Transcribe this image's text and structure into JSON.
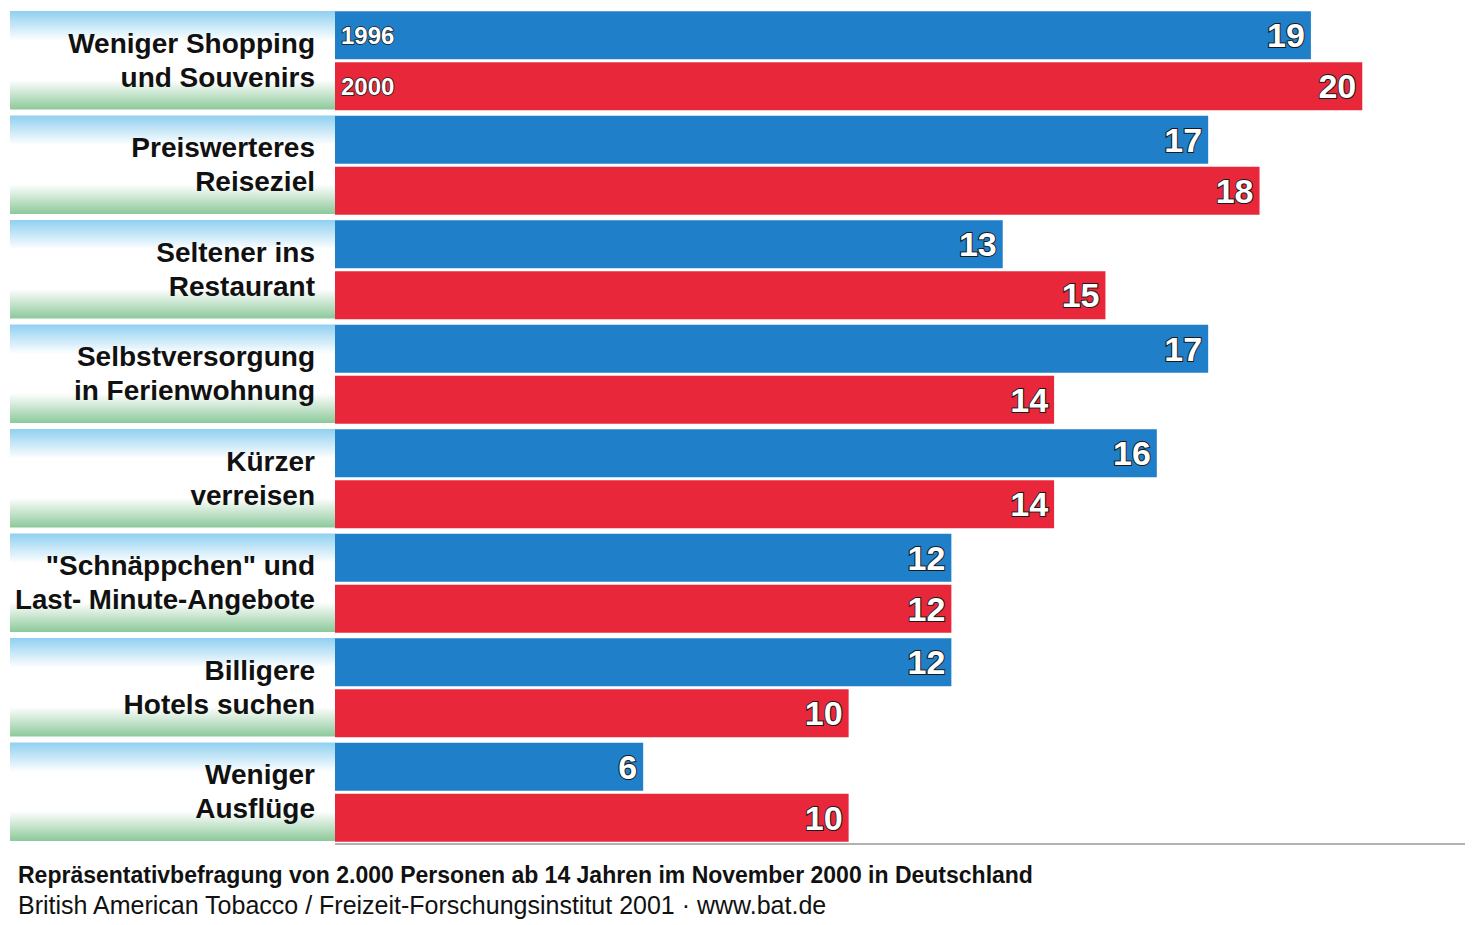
{
  "chart_data": {
    "type": "bar",
    "orientation": "horizontal",
    "categories": [
      "Weniger Shopping und Souvenirs",
      "Preiswerteres Reiseziel",
      "Seltener ins Restaurant",
      "Selbstversorgung in Ferienwohnung",
      "Kürzer verreisen",
      "\"Schnäppchen\" und Last- Minute-Angebote",
      "Billigere Hotels suchen",
      "Weniger Ausflüge"
    ],
    "series": [
      {
        "name": "1996",
        "color": "#1f7fc8",
        "values": [
          19,
          17,
          13,
          17,
          16,
          12,
          12,
          6
        ]
      },
      {
        "name": "2000",
        "color": "#e8283a",
        "values": [
          20,
          18,
          15,
          14,
          14,
          12,
          10,
          10
        ]
      }
    ],
    "xlim": [
      0,
      22
    ],
    "tick_labels": "y",
    "data_labels": true,
    "grid": false,
    "caption": "Repräsentativbefragung von 2.000 Personen ab 14 Jahren im November 2000 in Deutschland",
    "source": "British American Tobacco / Freizeit-Forschungsinstitut 2001 · www.bat.de"
  }
}
